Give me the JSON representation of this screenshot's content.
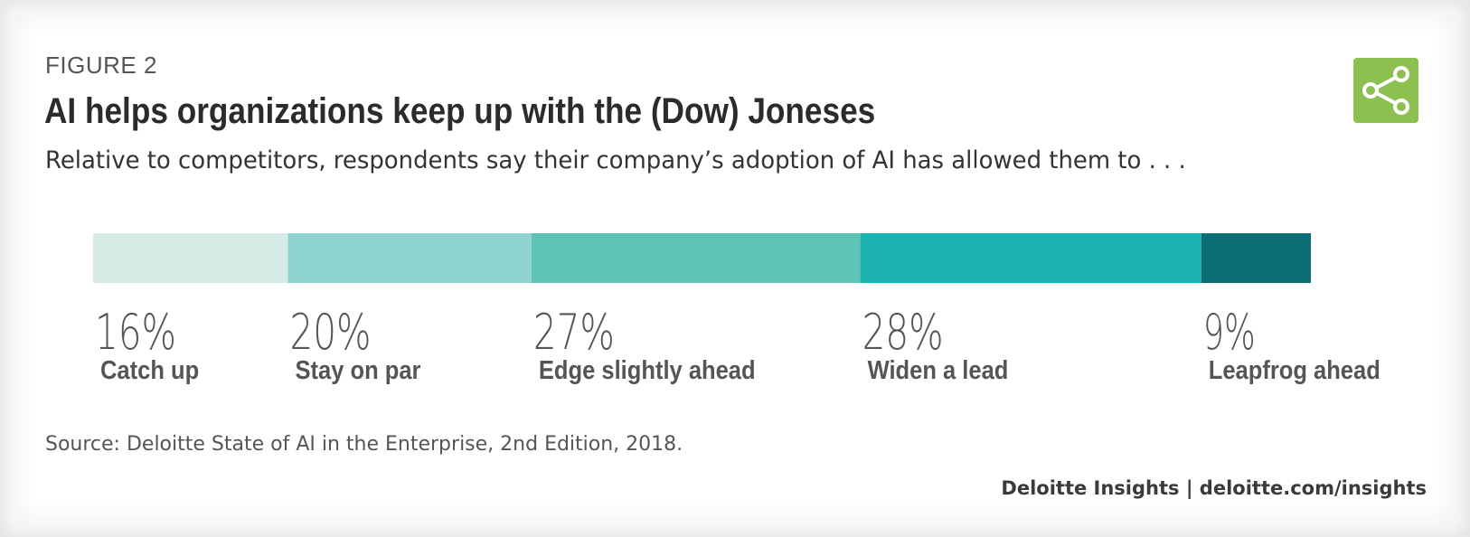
{
  "figure_label": "FIGURE 2",
  "title": "AI helps organizations keep up with the (Dow) Joneses",
  "subtitle": "Relative to competitors, respondents say their company’s adoption of AI has allowed them to . . .",
  "share_icon": "share-icon",
  "accent_color": "#8cc152",
  "chart_data": {
    "type": "bar",
    "orientation": "horizontal-stacked",
    "unit": "%",
    "categories": [
      "Catch up",
      "Stay on par",
      "Edge slightly ahead",
      "Widen a lead",
      "Leapfrog ahead"
    ],
    "values": [
      16,
      20,
      27,
      28,
      9
    ],
    "value_labels": [
      "16%",
      "20%",
      "27%",
      "28%",
      "9%"
    ],
    "colors": [
      "#d4ebe6",
      "#8fd3ce",
      "#5fc2b6",
      "#1bb2b0",
      "#0d6d77"
    ],
    "xlim": [
      0,
      100
    ],
    "grid": false,
    "legend": "none"
  },
  "source": "Source: Deloitte State of AI in the Enterprise, 2nd Edition, 2018.",
  "brand": "Deloitte Insights | deloitte.com/insights"
}
